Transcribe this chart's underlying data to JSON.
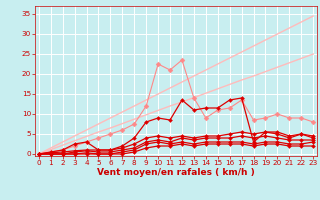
{
  "x": [
    0,
    1,
    2,
    3,
    4,
    5,
    6,
    7,
    8,
    9,
    10,
    11,
    12,
    13,
    14,
    15,
    16,
    17,
    18,
    19,
    20,
    21,
    22,
    23
  ],
  "series": [
    {
      "name": "line1_light_lower_diagonal",
      "color": "#ffbbbb",
      "lw": 1.0,
      "marker": null,
      "y": [
        0,
        1.1,
        2.2,
        3.3,
        4.4,
        5.5,
        6.5,
        7.6,
        8.7,
        9.8,
        10.9,
        12,
        13,
        14.1,
        15.2,
        16.3,
        17.4,
        18.5,
        19.5,
        20.6,
        21.7,
        22.8,
        23.9,
        25
      ]
    },
    {
      "name": "line2_light_upper_diagonal",
      "color": "#ffbbbb",
      "lw": 1.0,
      "marker": null,
      "y": [
        0,
        1.5,
        3,
        4.5,
        6,
        7.5,
        9,
        10.5,
        12,
        13.5,
        15,
        16.5,
        18,
        19.5,
        21,
        22.5,
        24,
        25.5,
        27,
        28.5,
        30,
        31.5,
        33,
        34.5
      ]
    },
    {
      "name": "line3_pink_diamonds",
      "color": "#ff8888",
      "lw": 0.8,
      "marker": "D",
      "markersize": 2.5,
      "y": [
        0,
        0.5,
        1,
        2,
        3,
        4,
        5,
        6,
        7.5,
        12,
        22.5,
        21,
        23.5,
        14,
        9,
        11,
        11.5,
        13.5,
        8.5,
        9,
        10,
        9,
        9,
        8
      ]
    },
    {
      "name": "line4_dark_spiky",
      "color": "#dd0000",
      "lw": 0.9,
      "marker": "D",
      "markersize": 2,
      "y": [
        0,
        0.5,
        1,
        2.5,
        3,
        1,
        1,
        2,
        4,
        8,
        9,
        8.5,
        13.5,
        11,
        11.5,
        11.5,
        13.5,
        14,
        3,
        5.5,
        5,
        4,
        5,
        4
      ]
    },
    {
      "name": "line5_mid_flat",
      "color": "#dd0000",
      "lw": 0.9,
      "marker": "D",
      "markersize": 2,
      "y": [
        0,
        0.3,
        0.5,
        0.8,
        1,
        1,
        1,
        1.5,
        2.5,
        4,
        4.5,
        4,
        4.5,
        4,
        4.5,
        4.5,
        5,
        5.5,
        5,
        5.5,
        5.5,
        4.5,
        5,
        4.5
      ]
    },
    {
      "name": "line6_low_flat",
      "color": "#dd0000",
      "lw": 0.9,
      "marker": "D",
      "markersize": 2,
      "y": [
        0,
        0,
        0,
        0.5,
        0.8,
        0.5,
        0.5,
        1,
        1.5,
        3,
        3.5,
        3,
        4,
        3.5,
        4,
        4,
        4,
        4.5,
        4,
        4.5,
        4,
        3.5,
        3.5,
        3.5
      ]
    },
    {
      "name": "line7_bottom",
      "color": "#dd0000",
      "lw": 0.9,
      "marker": "D",
      "markersize": 2,
      "y": [
        0,
        0,
        0,
        0,
        0.3,
        0,
        0,
        0.5,
        1,
        2.5,
        3,
        2.5,
        3,
        2.5,
        3,
        3,
        3,
        3,
        2.5,
        3,
        3,
        2.5,
        2.5,
        3
      ]
    },
    {
      "name": "line8_very_bottom",
      "color": "#dd0000",
      "lw": 0.9,
      "marker": "D",
      "markersize": 2,
      "y": [
        0,
        0,
        0,
        0,
        0,
        0,
        0,
        0,
        0.5,
        1.5,
        2,
        2,
        2.5,
        2,
        2.5,
        2.5,
        2.5,
        2.5,
        2,
        2.5,
        2.5,
        2,
        2,
        2
      ]
    }
  ],
  "xlim": [
    -0.3,
    23.3
  ],
  "ylim": [
    -0.5,
    37
  ],
  "yticks": [
    0,
    5,
    10,
    15,
    20,
    25,
    30,
    35
  ],
  "xticks": [
    0,
    1,
    2,
    3,
    4,
    5,
    6,
    7,
    8,
    9,
    10,
    11,
    12,
    13,
    14,
    15,
    16,
    17,
    18,
    19,
    20,
    21,
    22,
    23
  ],
  "xlabel": "Vent moyen/en rafales ( km/h )",
  "bg_color": "#c8eef0",
  "grid_color": "#ffffff",
  "tick_color": "#cc0000",
  "label_color": "#cc0000",
  "tick_fontsize": 5.2,
  "xlabel_fontsize": 6.5
}
